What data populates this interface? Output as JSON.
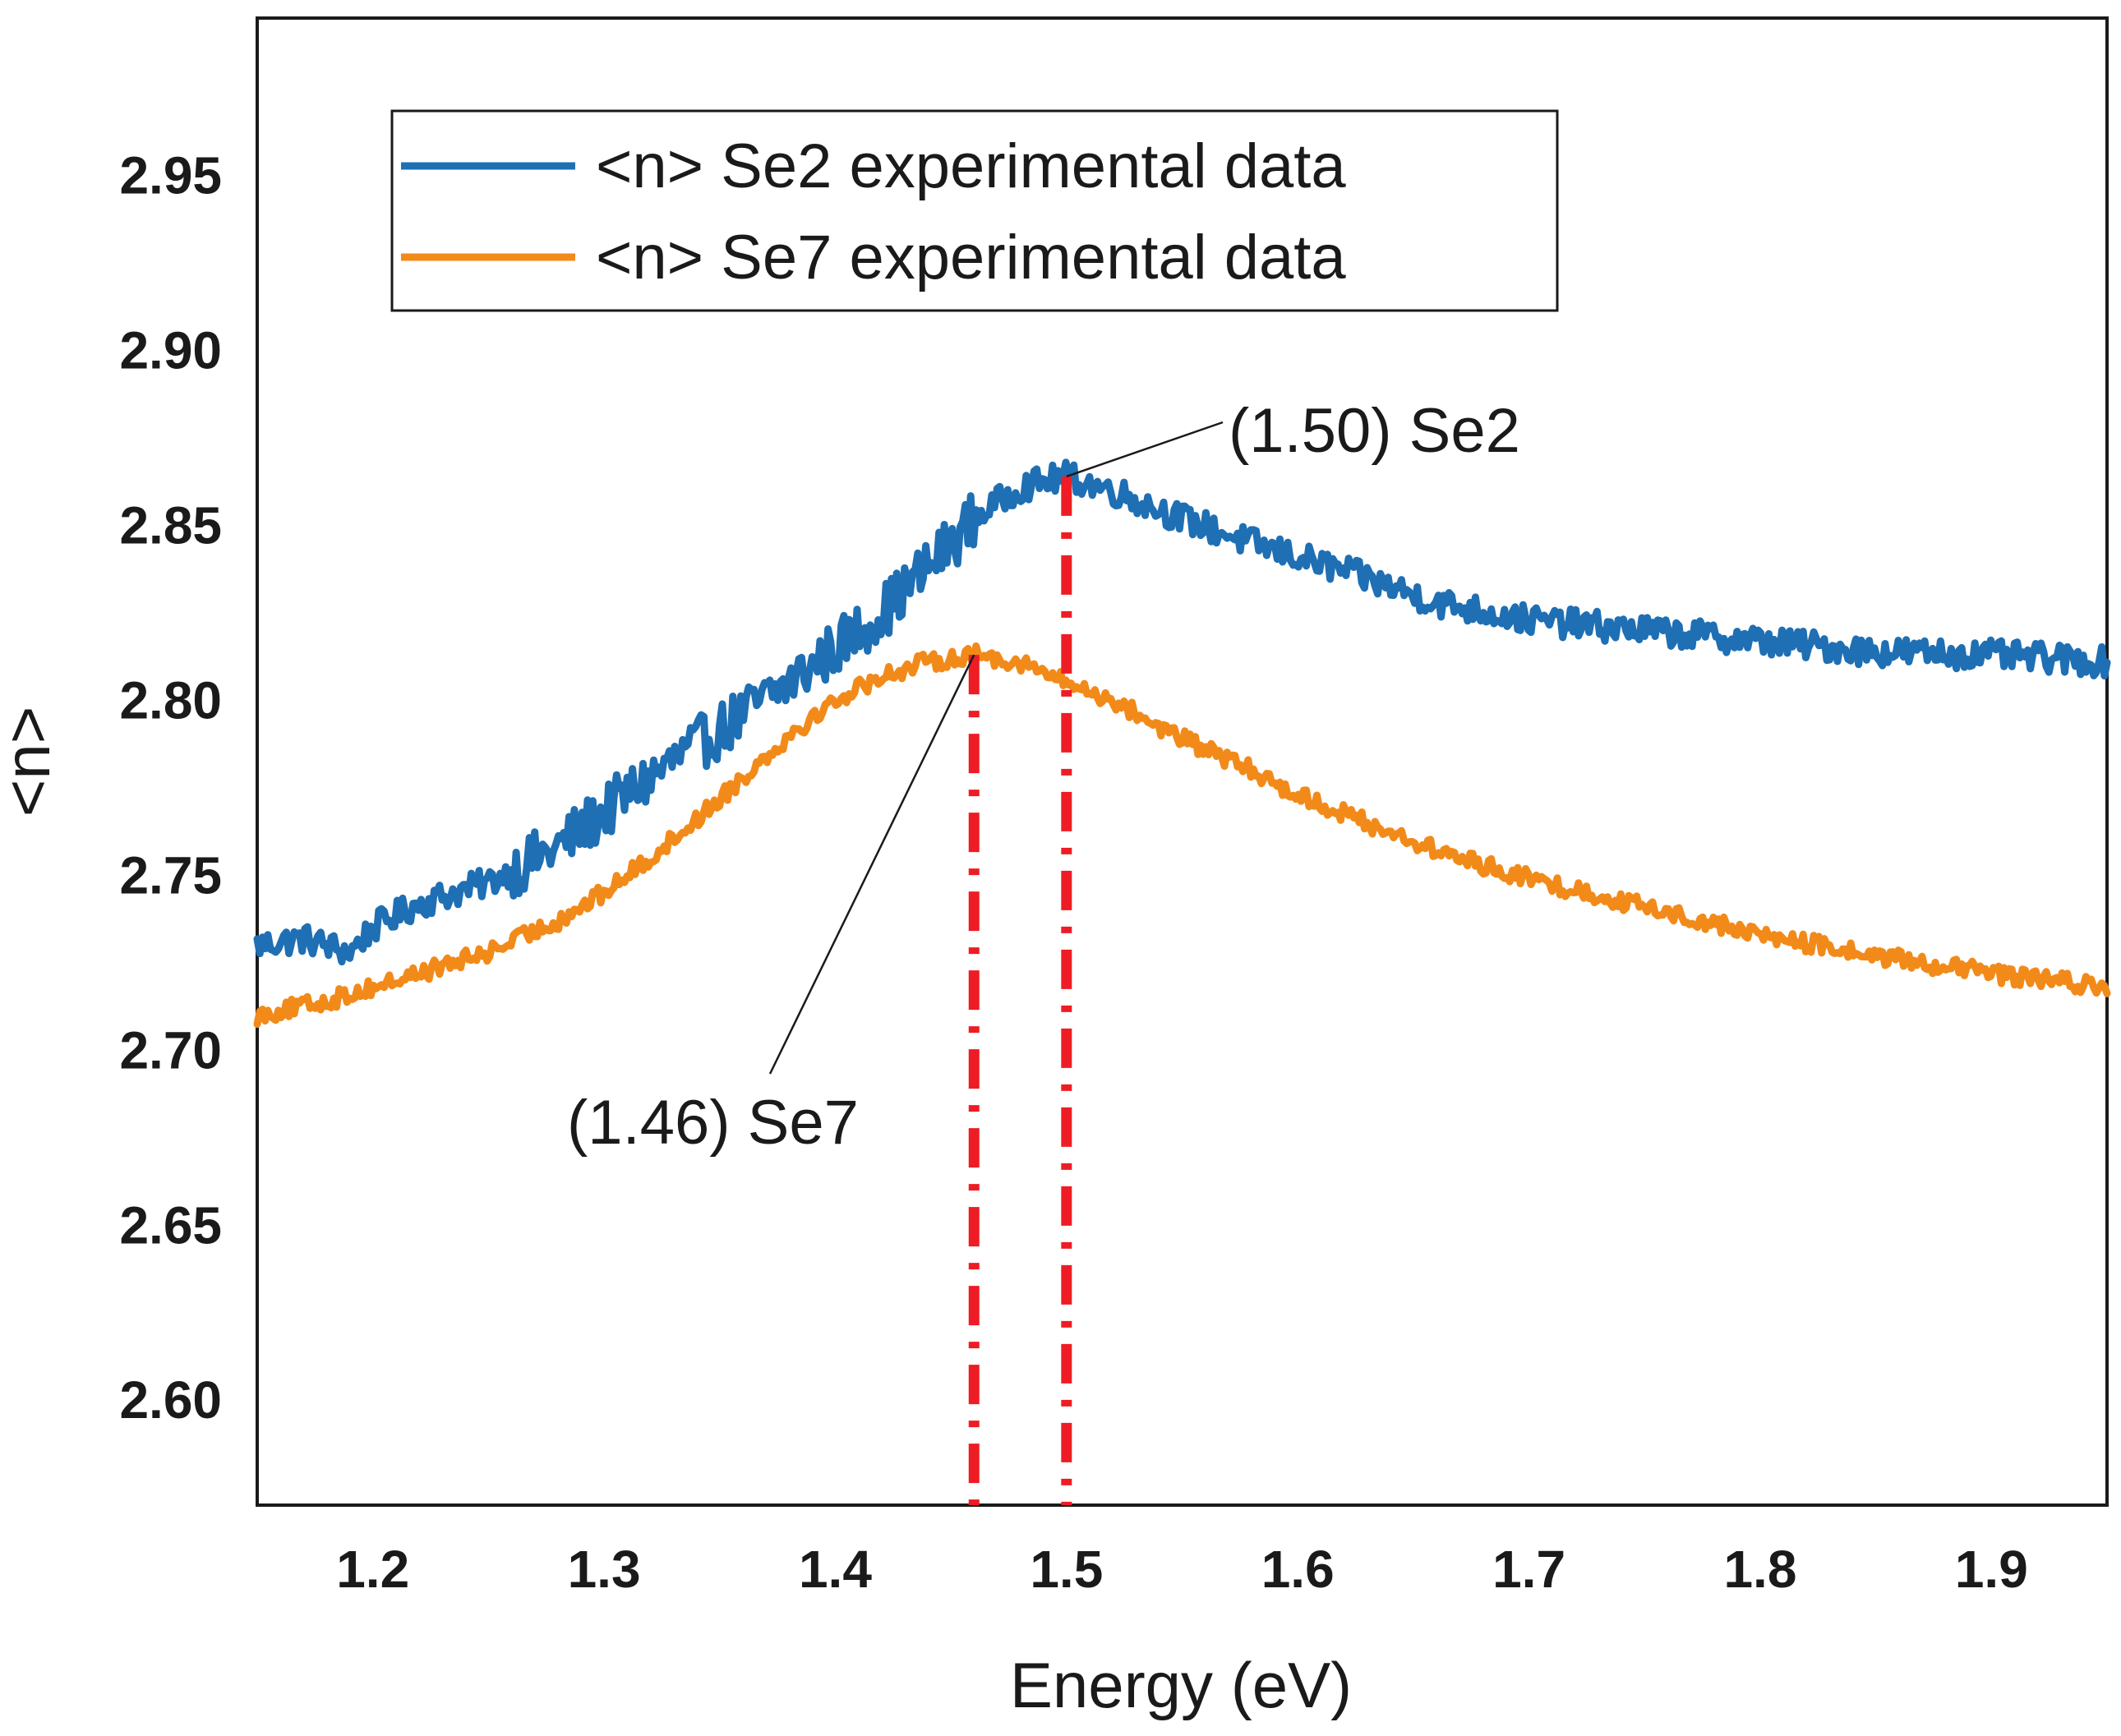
{
  "chart_data": {
    "type": "line",
    "title": "",
    "xlabel": "Energy (eV)",
    "ylabel": "<n>",
    "xlim": [
      1.15,
      1.95
    ],
    "ylim": [
      2.57,
      2.995
    ],
    "xticks": [
      1.2,
      1.3,
      1.4,
      1.5,
      1.6,
      1.7,
      1.8,
      1.9
    ],
    "xtick_labels": [
      "1.2",
      "1.3",
      "1.4",
      "1.5",
      "1.6",
      "1.7",
      "1.8",
      "1.9"
    ],
    "yticks": [
      2.6,
      2.65,
      2.7,
      2.75,
      2.8,
      2.85,
      2.9,
      2.95
    ],
    "ytick_labels": [
      "2.60",
      "2.65",
      "2.70",
      "2.75",
      "2.80",
      "2.85",
      "2.90",
      "2.95"
    ],
    "grid": false,
    "legend_position": "top-left",
    "series": [
      {
        "name": "<n> Se2 experimental data",
        "color": "#1f6fb4",
        "x": [
          1.15,
          1.17,
          1.19,
          1.2,
          1.22,
          1.25,
          1.28,
          1.3,
          1.32,
          1.34,
          1.36,
          1.38,
          1.4,
          1.42,
          1.44,
          1.46,
          1.48,
          1.5,
          1.52,
          1.55,
          1.58,
          1.62,
          1.66,
          1.7,
          1.75,
          1.8,
          1.85,
          1.9,
          1.95
        ],
        "y": [
          2.73,
          2.732,
          2.728,
          2.735,
          2.742,
          2.748,
          2.758,
          2.768,
          2.778,
          2.787,
          2.796,
          2.805,
          2.815,
          2.825,
          2.838,
          2.852,
          2.861,
          2.864,
          2.86,
          2.852,
          2.845,
          2.837,
          2.828,
          2.823,
          2.82,
          2.817,
          2.814,
          2.813,
          2.811
        ]
      },
      {
        "name": "<n> Se7 experimental data",
        "color": "#f28a1a",
        "x": [
          1.15,
          1.18,
          1.2,
          1.22,
          1.25,
          1.28,
          1.3,
          1.32,
          1.34,
          1.36,
          1.38,
          1.4,
          1.42,
          1.44,
          1.46,
          1.48,
          1.5,
          1.52,
          1.55,
          1.58,
          1.6,
          1.63,
          1.66,
          1.7,
          1.75,
          1.8,
          1.85,
          1.9,
          1.95
        ],
        "y": [
          2.71,
          2.714,
          2.718,
          2.722,
          2.728,
          2.737,
          2.745,
          2.755,
          2.766,
          2.778,
          2.79,
          2.8,
          2.807,
          2.811,
          2.813,
          2.811,
          2.805,
          2.8,
          2.789,
          2.78,
          2.773,
          2.765,
          2.757,
          2.749,
          2.741,
          2.733,
          2.727,
          2.722,
          2.718
        ]
      }
    ],
    "reference_lines": [
      {
        "x": 1.46,
        "color": "#ee1c24",
        "style": "dash-dot"
      },
      {
        "x": 1.5,
        "color": "#ee1c24",
        "style": "dash-dot"
      }
    ],
    "annotations": [
      {
        "text": "(1.50) Se2",
        "point": [
          1.5,
          2.864
        ]
      },
      {
        "text": "(1.46) Se7",
        "point": [
          1.46,
          2.813
        ]
      }
    ]
  }
}
